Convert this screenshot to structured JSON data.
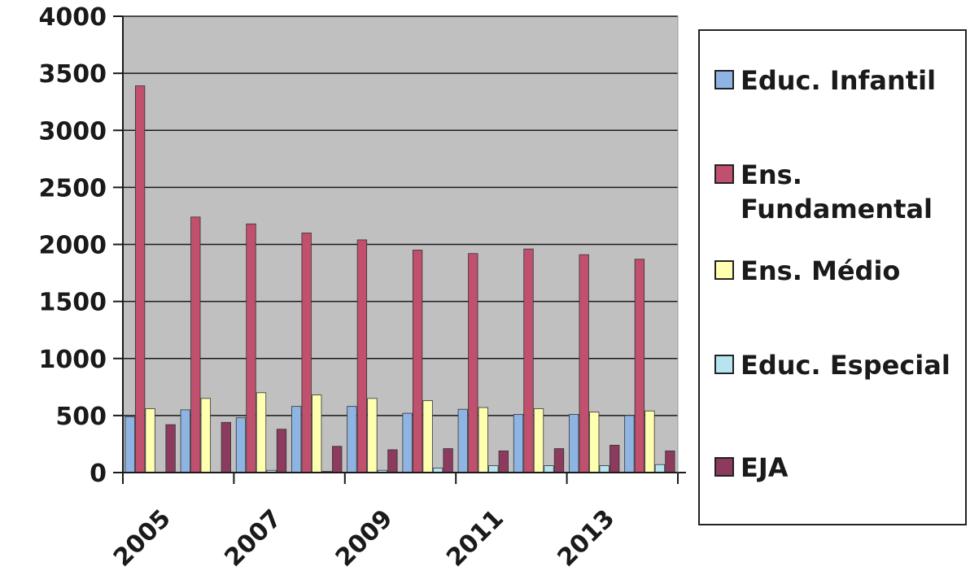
{
  "chart_data": {
    "type": "bar",
    "title": "",
    "xlabel": "",
    "ylabel": "",
    "ylim": [
      0,
      4000
    ],
    "y_ticks": [
      "0",
      "500",
      "1000",
      "1500",
      "2000",
      "2500",
      "3000",
      "3500",
      "4000"
    ],
    "categories": [
      "2005",
      "2006",
      "2007",
      "2008",
      "2009",
      "2010",
      "2011",
      "2012",
      "2013",
      "2014"
    ],
    "x_tick_labels": [
      "2005",
      "2007",
      "2009",
      "2011",
      "2013"
    ],
    "grid": true,
    "legend_position": "right",
    "plot_background": "#c0c0c0",
    "series": [
      {
        "name": "Educ. Infantil",
        "color": "#8eb4e3",
        "values": [
          490,
          550,
          480,
          580,
          580,
          520,
          555,
          510,
          510,
          500
        ]
      },
      {
        "name": "Ens.\nFundamental",
        "color": "#c0506d",
        "values": [
          3390,
          2240,
          2180,
          2100,
          2040,
          1950,
          1920,
          1960,
          1910,
          1870
        ]
      },
      {
        "name": "Ens. Médio",
        "color": "#ffffb0",
        "values": [
          560,
          650,
          700,
          680,
          650,
          630,
          570,
          560,
          530,
          540
        ]
      },
      {
        "name": "Educ. Especial",
        "color": "#b8e4f0",
        "values": [
          0,
          0,
          20,
          10,
          20,
          40,
          60,
          60,
          60,
          70
        ]
      },
      {
        "name": "EJA",
        "color": "#8c3a5e",
        "values": [
          420,
          440,
          380,
          230,
          200,
          210,
          190,
          210,
          240,
          190
        ]
      }
    ]
  }
}
